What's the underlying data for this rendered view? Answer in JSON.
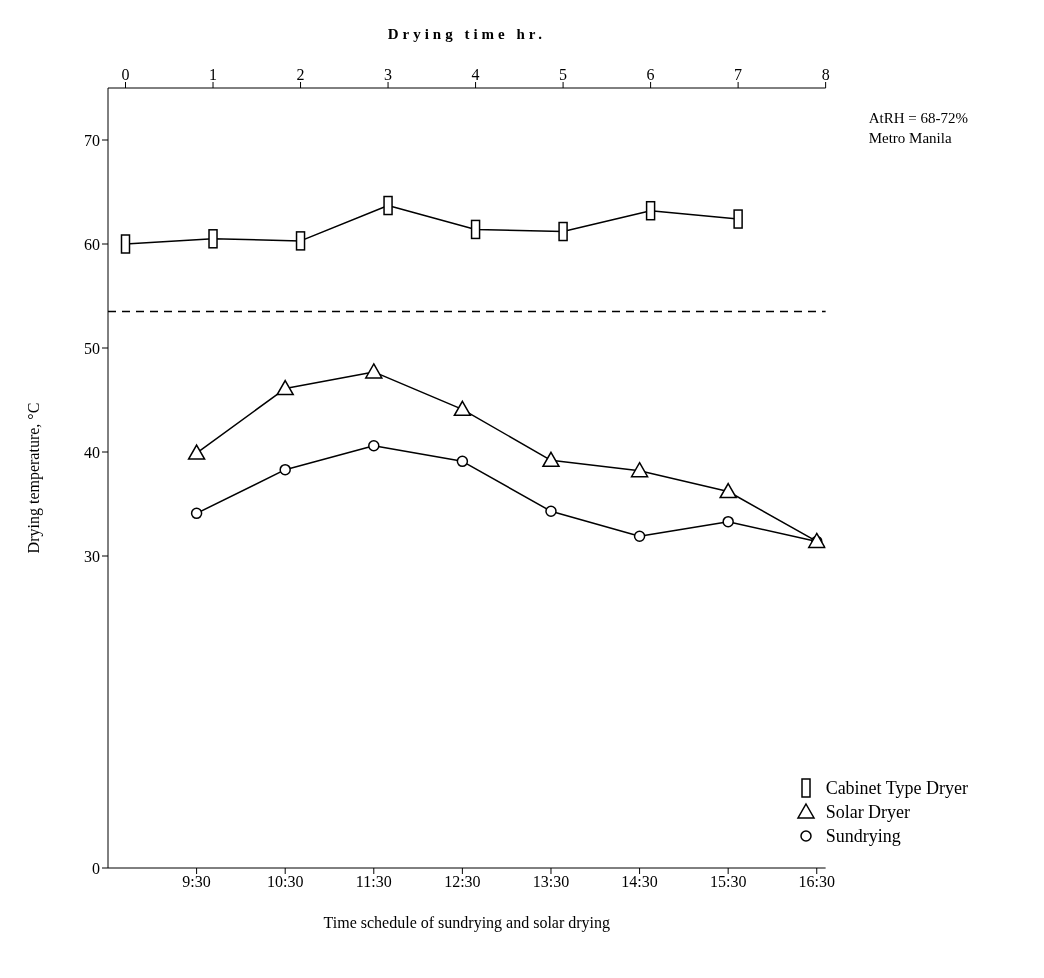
{
  "chart_data": {
    "type": "line",
    "xlabel": "Time schedule of sundrying and solar drying",
    "x2label": "Drying time hr.",
    "ylabel": "Drying temperature, °C",
    "annotations": [
      "AtRH = 68-72%",
      "Metro Manila"
    ],
    "xlim": [
      8.5,
      16.6
    ],
    "xticks": [
      {
        "value": 9.5,
        "label": "9:30"
      },
      {
        "value": 10.5,
        "label": "10:30"
      },
      {
        "value": 11.5,
        "label": "11:30"
      },
      {
        "value": 12.5,
        "label": "12:30"
      },
      {
        "value": 13.5,
        "label": "13:30"
      },
      {
        "value": 14.5,
        "label": "14:30"
      },
      {
        "value": 15.5,
        "label": "15:30"
      },
      {
        "value": 16.5,
        "label": "16:30"
      }
    ],
    "x2lim": [
      -0.2,
      8
    ],
    "x2ticks": [
      0,
      1,
      2,
      3,
      4,
      5,
      6,
      7,
      8
    ],
    "ylim": [
      0,
      75
    ],
    "yticks": [
      0,
      30,
      40,
      50,
      60,
      70
    ],
    "grid": false,
    "legend": "bottom right",
    "line_style": "solid",
    "ref_lines": [
      {
        "axis": "y",
        "value": 53.5,
        "line_style": "dashed",
        "color": "#000000"
      }
    ],
    "series": [
      {
        "name": "Cabinet Type Dryer",
        "color": "#000000",
        "marker": "square",
        "axis": "x2",
        "x": [
          0,
          1,
          2,
          3,
          4,
          5,
          6,
          7
        ],
        "values": [
          60,
          60.5,
          60.3,
          63.7,
          61.4,
          61.2,
          63.2,
          62.4
        ]
      },
      {
        "name": "Solar Dryer",
        "color": "#000000",
        "marker": "triangle",
        "x": [
          9.5,
          10.5,
          11.5,
          12.5,
          13.5,
          14.5,
          15.5,
          16.5
        ],
        "values": [
          39.9,
          46.1,
          47.7,
          44.1,
          39.2,
          38.2,
          36.2,
          31.4
        ]
      },
      {
        "name": "Sundrying",
        "color": "#000000",
        "marker": "circle",
        "x": [
          9.5,
          10.5,
          11.5,
          12.5,
          13.5,
          14.5,
          15.5,
          16.5
        ],
        "values": [
          34.1,
          38.3,
          40.6,
          39.1,
          34.3,
          31.9,
          33.3,
          31.4
        ]
      }
    ]
  }
}
